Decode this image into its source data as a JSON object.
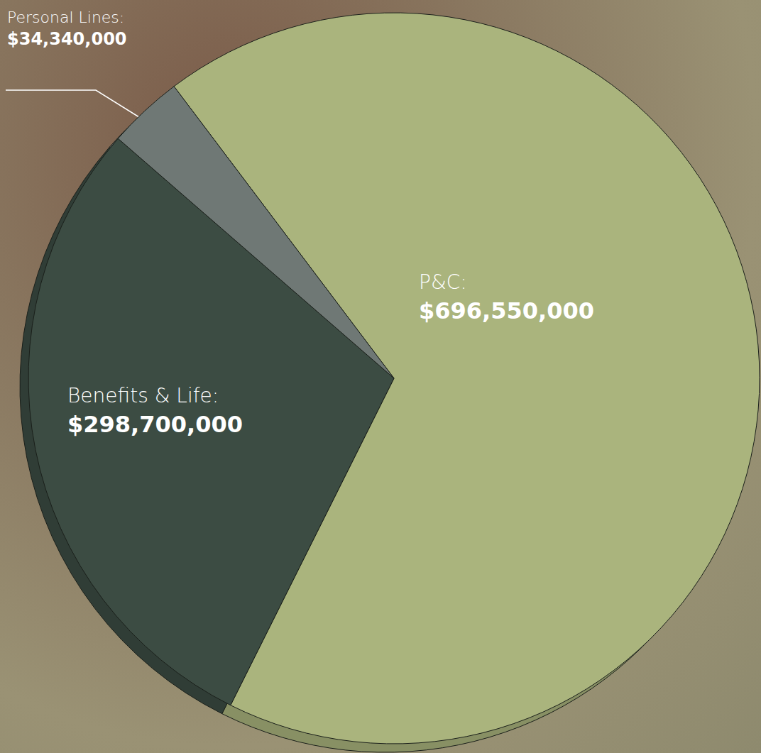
{
  "chart_data": {
    "type": "pie",
    "categories": [
      "P&C:",
      "Benefits & Life:",
      "Personal Lines:"
    ],
    "values": [
      696550000,
      298700000,
      34340000
    ],
    "value_labels": [
      "$696,550,000",
      "$298,700,000",
      "$34,340,000"
    ],
    "colors": [
      "#aab47d",
      "#3c4c43",
      "#6f7875"
    ],
    "data_labels": true
  }
}
